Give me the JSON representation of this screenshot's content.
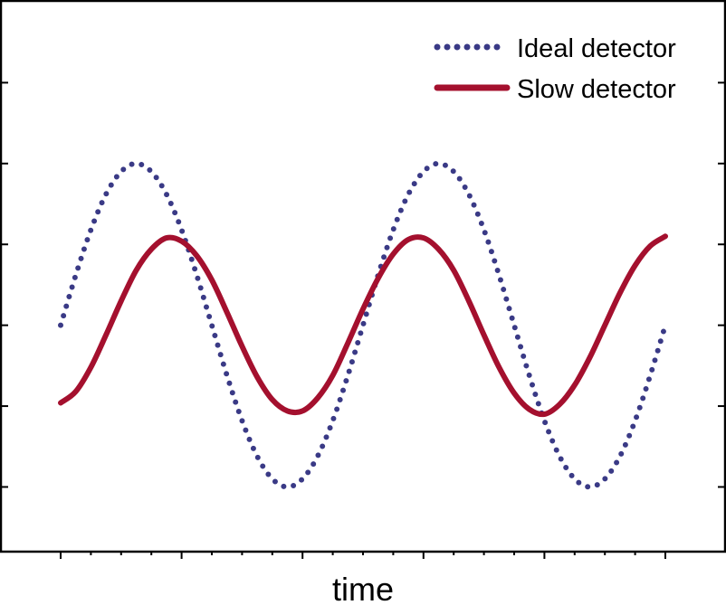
{
  "chart_data": {
    "type": "line",
    "title": "",
    "xlabel": "time",
    "ylabel": "",
    "xlim": [
      0,
      1
    ],
    "ylim": [
      -1.4,
      2.0
    ],
    "x_tick_count": 21,
    "y_tick_values": [
      -1.0,
      -0.5,
      0.0,
      0.5,
      1.0,
      1.5
    ],
    "grid": false,
    "legend_position": "top-right",
    "series": [
      {
        "name": "Ideal detector",
        "style": "dotted",
        "color": "#3a3a86",
        "x": [
          0.0,
          0.025,
          0.05,
          0.075,
          0.1,
          0.125,
          0.15,
          0.175,
          0.2,
          0.225,
          0.25,
          0.275,
          0.3,
          0.325,
          0.35,
          0.375,
          0.4,
          0.425,
          0.45,
          0.475,
          0.5,
          0.525,
          0.55,
          0.575,
          0.6,
          0.625,
          0.65,
          0.675,
          0.7,
          0.725,
          0.75,
          0.775,
          0.8,
          0.825,
          0.85,
          0.875,
          0.9,
          0.925,
          0.95,
          0.975,
          1.0
        ],
        "y": [
          0.0,
          0.31,
          0.59,
          0.81,
          0.95,
          1.0,
          0.95,
          0.81,
          0.59,
          0.31,
          0.0,
          -0.31,
          -0.59,
          -0.81,
          -0.95,
          -1.0,
          -0.95,
          -0.81,
          -0.59,
          -0.31,
          0.0,
          0.31,
          0.59,
          0.81,
          0.95,
          1.0,
          0.95,
          0.81,
          0.59,
          0.31,
          0.0,
          -0.31,
          -0.59,
          -0.81,
          -0.95,
          -1.0,
          -0.95,
          -0.81,
          -0.59,
          -0.31,
          0.0
        ]
      },
      {
        "name": "Slow detector",
        "style": "solid",
        "color": "#a4102e",
        "x": [
          0.0,
          0.025,
          0.05,
          0.075,
          0.1,
          0.125,
          0.15,
          0.175,
          0.2,
          0.225,
          0.25,
          0.275,
          0.3,
          0.325,
          0.35,
          0.375,
          0.4,
          0.425,
          0.45,
          0.475,
          0.5,
          0.525,
          0.55,
          0.575,
          0.6,
          0.625,
          0.65,
          0.675,
          0.7,
          0.725,
          0.75,
          0.775,
          0.8,
          0.825,
          0.85,
          0.875,
          0.9,
          0.925,
          0.95,
          0.975,
          1.0
        ],
        "y": [
          -0.48,
          -0.41,
          -0.26,
          -0.06,
          0.15,
          0.34,
          0.47,
          0.54,
          0.52,
          0.43,
          0.28,
          0.08,
          -0.13,
          -0.32,
          -0.46,
          -0.53,
          -0.53,
          -0.45,
          -0.31,
          -0.11,
          0.1,
          0.29,
          0.44,
          0.53,
          0.54,
          0.47,
          0.34,
          0.15,
          -0.06,
          -0.26,
          -0.42,
          -0.52,
          -0.55,
          -0.49,
          -0.37,
          -0.2,
          0.0,
          0.2,
          0.37,
          0.49,
          0.55
        ]
      }
    ]
  }
}
